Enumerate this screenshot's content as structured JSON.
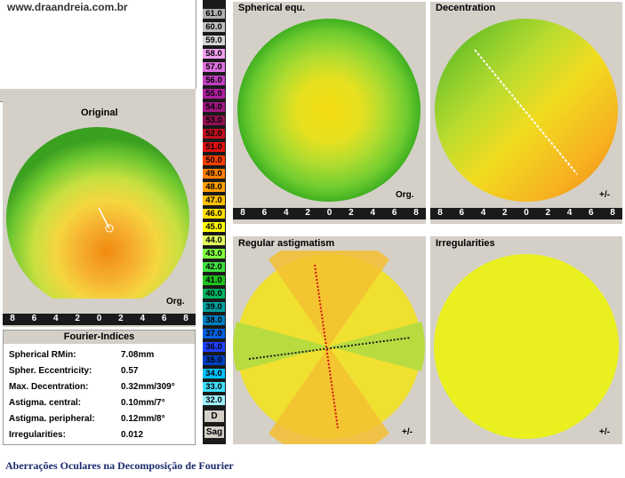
{
  "header": {
    "url": "www.draandreia.com.br"
  },
  "panels": {
    "original": {
      "title": "Original",
      "tag": "Org."
    },
    "spherical": {
      "title": "Spherical equ.",
      "tag": "Org."
    },
    "decentration": {
      "title": "Decentration",
      "tag": "+/-"
    },
    "regular_astigmatism": {
      "title": "Regular astigmatism",
      "tag": "+/-"
    },
    "irregularities": {
      "title": "Irregularities",
      "tag": "+/-"
    }
  },
  "axis_ticks": [
    "8",
    "6",
    "4",
    "2",
    "0",
    "2",
    "4",
    "6",
    "8"
  ],
  "scale": {
    "values": [
      "61.0",
      "60.0",
      "59.0",
      "58.0",
      "57.0",
      "56.0",
      "55.0",
      "54.0",
      "53.0",
      "52.0",
      "51.0",
      "50.0",
      "49.0",
      "48.0",
      "47.0",
      "46.0",
      "45.0",
      "44.0",
      "43.0",
      "42.0",
      "41.0",
      "40.0",
      "39.0",
      "38.0",
      "37.0",
      "36.0",
      "35.0",
      "34.0",
      "33.0",
      "32.0"
    ],
    "colors": [
      "#b0b0b0",
      "#c0c0c0",
      "#d4d4d4",
      "#f0a0f0",
      "#e070e0",
      "#c040c0",
      "#b020a0",
      "#a01880",
      "#901050",
      "#c01020",
      "#e01010",
      "#ff4000",
      "#ff8000",
      "#ffa000",
      "#ffc000",
      "#ffe000",
      "#ffff00",
      "#e0ff60",
      "#80ff40",
      "#40e040",
      "#20c020",
      "#00b060",
      "#00a0a0",
      "#0080c0",
      "#0060e0",
      "#2040ff",
      "#0040c0",
      "#00c0ff",
      "#40e0ff",
      "#a0f0ff"
    ],
    "mode_d": "D",
    "mode_sag": "Sag"
  },
  "fourier": {
    "title": "Fourier-Indices",
    "rows": [
      {
        "label": "Spherical RMin:",
        "value": "7.08mm"
      },
      {
        "label": "Spher. Eccentricity:",
        "value": "0.57"
      },
      {
        "label": "Max. Decentration:",
        "value": "0.32mm/309°"
      },
      {
        "label": "Astigma. central:",
        "value": "0.10mm/7°"
      },
      {
        "label": "Astigma. peripheral:",
        "value": "0.12mm/8°"
      },
      {
        "label": "Irregularities:",
        "value": "0.012"
      }
    ]
  },
  "caption": "Aberrações Oculares na Decomposição de Fourier"
}
